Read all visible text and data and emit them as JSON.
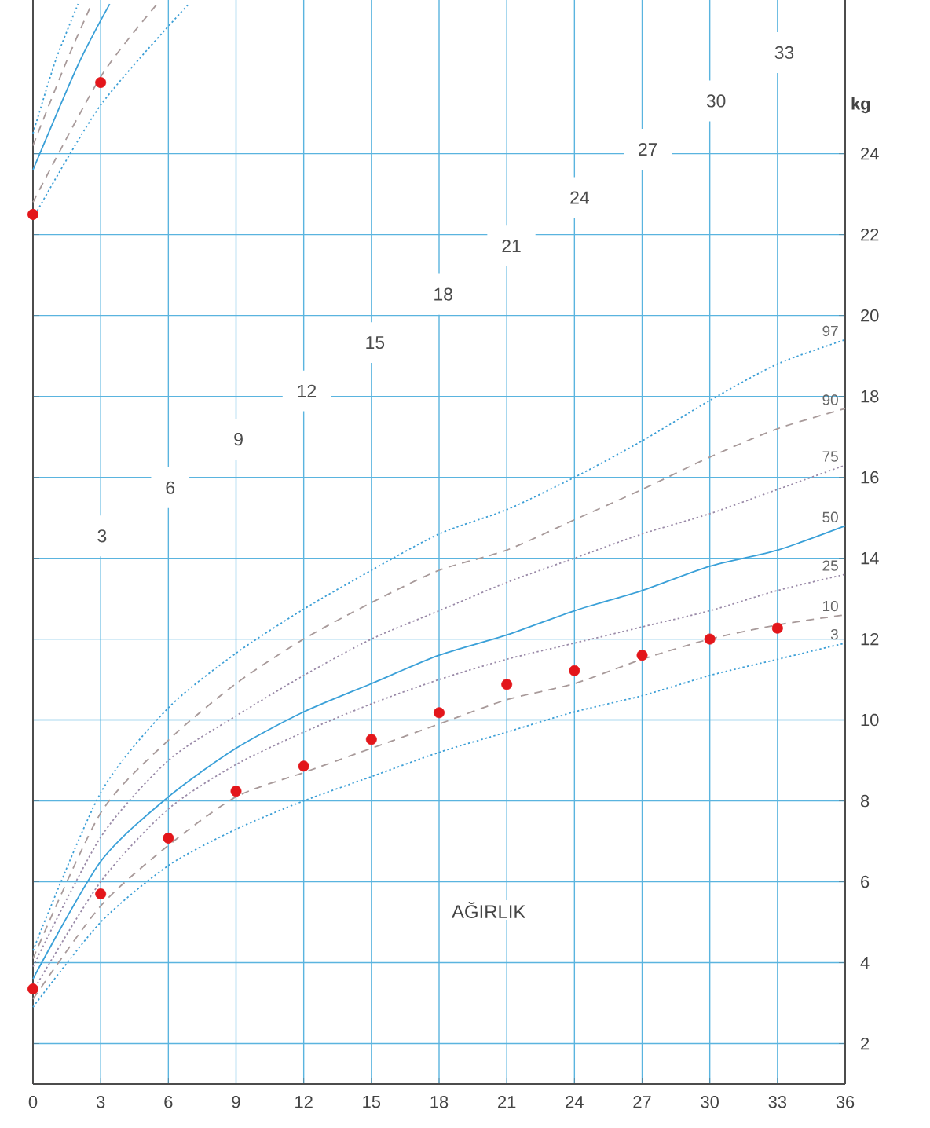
{
  "chart_data": {
    "type": "line",
    "title": "AĞIRLIK",
    "ylabel": "kg",
    "xlim": [
      0,
      36
    ],
    "ylim": [
      1,
      27.8
    ],
    "xticks": [
      0,
      3,
      6,
      9,
      12,
      15,
      18,
      21,
      24,
      27,
      30,
      33,
      36
    ],
    "yticks": [
      2,
      4,
      6,
      8,
      10,
      12,
      14,
      16,
      18,
      20,
      22,
      24
    ],
    "grid": true,
    "annotations": [
      "3",
      "6",
      "9",
      "12",
      "15",
      "18",
      "21",
      "24",
      "27",
      "30",
      "33"
    ],
    "x": [
      0,
      3,
      6,
      9,
      12,
      15,
      18,
      21,
      24,
      27,
      30,
      33,
      36
    ],
    "series": [
      {
        "name": "97",
        "color": "#3d9fd6",
        "line_style": "dotted",
        "values": [
          4.3,
          8.2,
          10.3,
          11.65,
          12.74,
          13.7,
          14.6,
          15.2,
          16.0,
          16.9,
          17.9,
          18.8,
          19.4
        ]
      },
      {
        "name": "90",
        "color": "#a89a9a",
        "line_style": "dashed",
        "values": [
          4.1,
          7.7,
          9.5,
          10.9,
          12.0,
          12.9,
          13.7,
          14.2,
          14.95,
          15.7,
          16.5,
          17.2,
          17.7
        ]
      },
      {
        "name": "75",
        "color": "#9a8aa8",
        "line_style": "dotted",
        "values": [
          3.9,
          7.1,
          9.0,
          10.1,
          11.1,
          12.0,
          12.7,
          13.4,
          14.0,
          14.6,
          15.1,
          15.7,
          16.3
        ]
      },
      {
        "name": "50",
        "color": "#3aa0d8",
        "line_style": "solid",
        "values": [
          3.6,
          6.5,
          8.1,
          9.3,
          10.2,
          10.9,
          11.6,
          12.1,
          12.7,
          13.2,
          13.8,
          14.2,
          14.8
        ]
      },
      {
        "name": "25",
        "color": "#9a8aa8",
        "line_style": "dotted",
        "values": [
          3.3,
          6.0,
          7.8,
          8.9,
          9.7,
          10.4,
          11.0,
          11.5,
          11.9,
          12.3,
          12.7,
          13.2,
          13.6
        ]
      },
      {
        "name": "10",
        "color": "#a89a9a",
        "line_style": "dashed",
        "values": [
          3.1,
          5.4,
          6.9,
          8.1,
          8.7,
          9.3,
          9.9,
          10.5,
          10.9,
          11.5,
          12.0,
          12.35,
          12.6
        ]
      },
      {
        "name": "3",
        "color": "#3d9fd6",
        "line_style": "dotted",
        "values": [
          2.9,
          5.0,
          6.4,
          7.3,
          8.0,
          8.6,
          9.2,
          9.7,
          10.2,
          10.6,
          11.1,
          11.5,
          11.9
        ]
      },
      {
        "color": "#3d9fd6",
        "line_style": "dotted",
        "x": [
          0,
          3,
          6.9
        ],
        "values": [
          22.4,
          25.2,
          27.7
        ]
      },
      {
        "color": "#a89a9a",
        "line_style": "dashed",
        "x": [
          0,
          3,
          5.5
        ],
        "values": [
          22.8,
          25.9,
          27.7
        ]
      },
      {
        "color": "#3aa0d8",
        "line_style": "solid",
        "x": [
          0,
          2,
          3.4
        ],
        "values": [
          23.6,
          26.2,
          27.7
        ]
      },
      {
        "color": "#a89a9a",
        "line_style": "dashed",
        "x": [
          0,
          1.5,
          2.6
        ],
        "values": [
          24.2,
          26.3,
          27.7
        ]
      },
      {
        "color": "#3d9fd6",
        "line_style": "dotted",
        "x": [
          0,
          1,
          2
        ],
        "values": [
          24.5,
          26.3,
          27.7
        ]
      },
      {
        "type": "scatter",
        "marker": "circle",
        "color": "#e3161b",
        "x": [
          0,
          3,
          6,
          9,
          12,
          15,
          18,
          21,
          24,
          27,
          30,
          33
        ],
        "values": [
          3.35,
          5.7,
          7.08,
          8.24,
          8.86,
          9.52,
          10.18,
          10.88,
          11.22,
          11.6,
          12.0,
          12.27
        ]
      },
      {
        "type": "scatter",
        "marker": "circle",
        "color": "#e3161b",
        "x": [
          0,
          3
        ],
        "values": [
          22.5,
          25.76
        ]
      }
    ]
  }
}
